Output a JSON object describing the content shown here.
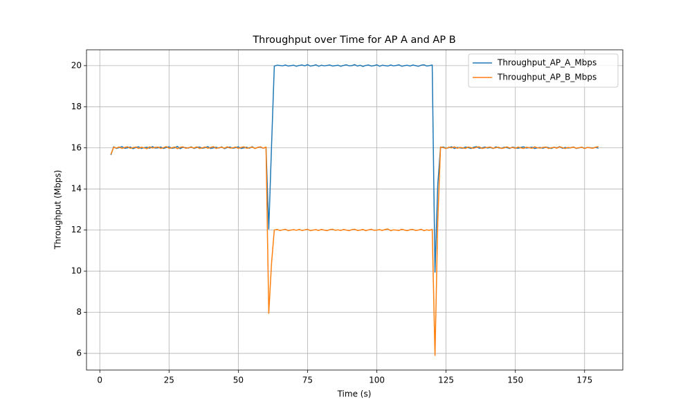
{
  "chart_data": {
    "type": "line",
    "title": "Throughput over Time for AP A and AP B",
    "x_label": "Time (s)",
    "y_label": "Throughput (Mbps)",
    "x": [
      4,
      5,
      6,
      7,
      8,
      9,
      10,
      11,
      12,
      13,
      14,
      15,
      16,
      17,
      18,
      19,
      20,
      21,
      22,
      23,
      24,
      25,
      26,
      27,
      28,
      29,
      30,
      31,
      32,
      33,
      34,
      35,
      36,
      37,
      38,
      39,
      40,
      41,
      42,
      43,
      44,
      45,
      46,
      47,
      48,
      49,
      50,
      51,
      52,
      53,
      54,
      55,
      56,
      57,
      58,
      59,
      60,
      61,
      62,
      63,
      64,
      65,
      66,
      67,
      68,
      69,
      70,
      71,
      72,
      73,
      74,
      75,
      76,
      77,
      78,
      79,
      80,
      81,
      82,
      83,
      84,
      85,
      86,
      87,
      88,
      89,
      90,
      91,
      92,
      93,
      94,
      95,
      96,
      97,
      98,
      99,
      100,
      101,
      102,
      103,
      104,
      105,
      106,
      107,
      108,
      109,
      110,
      111,
      112,
      113,
      114,
      115,
      116,
      117,
      118,
      119,
      120,
      121,
      122,
      123,
      124,
      125,
      126,
      127,
      128,
      129,
      130,
      131,
      132,
      133,
      134,
      135,
      136,
      137,
      138,
      139,
      140,
      141,
      142,
      143,
      144,
      145,
      146,
      147,
      148,
      149,
      150,
      151,
      152,
      153,
      154,
      155,
      156,
      157,
      158,
      159,
      160,
      161,
      162,
      163,
      164,
      165,
      166,
      167,
      168,
      169,
      170,
      171,
      172,
      173,
      174,
      175,
      176,
      177,
      178,
      179,
      180
    ],
    "series": [
      {
        "name": "Throughput_AP_A_Mbps",
        "color": "#1f77b4",
        "values": [
          15.65,
          16.05,
          15.97,
          16.01,
          16.06,
          15.98,
          16.0,
          16.04,
          15.96,
          16.02,
          16.05,
          15.97,
          16.01,
          16.03,
          15.98,
          16.06,
          15.99,
          16.0,
          16.04,
          15.97,
          16.02,
          16.05,
          15.98,
          16.0,
          16.07,
          15.96,
          16.03,
          16.01,
          15.99,
          16.05,
          15.97,
          16.02,
          16.04,
          15.98,
          16.01,
          16.06,
          15.97,
          16.0,
          16.03,
          15.99,
          16.05,
          15.96,
          16.02,
          16.04,
          15.98,
          16.01,
          16.05,
          15.97,
          16.0,
          16.03,
          15.98,
          16.06,
          15.97,
          16.02,
          16.04,
          15.98,
          16.03,
          12.05,
          16.1,
          19.98,
          20.02,
          20.01,
          19.99,
          20.03,
          19.98,
          20.0,
          20.02,
          19.97,
          20.01,
          20.03,
          19.99,
          20.05,
          19.98,
          20.0,
          20.04,
          19.97,
          20.02,
          19.99,
          20.01,
          20.03,
          19.98,
          20.0,
          20.02,
          19.97,
          20.01,
          20.04,
          19.99,
          20.0,
          20.05,
          19.98,
          20.02,
          19.96,
          20.01,
          20.03,
          19.98,
          20.0,
          20.04,
          19.97,
          20.02,
          20.0,
          19.98,
          20.03,
          19.99,
          20.01,
          20.04,
          19.97,
          20.0,
          20.02,
          19.98,
          20.03,
          20.0,
          19.97,
          20.02,
          20.04,
          19.98,
          20.0,
          20.03,
          9.95,
          14.2,
          16.02,
          16.04,
          15.98,
          16.01,
          16.05,
          15.97,
          16.02,
          16.0,
          15.98,
          16.04,
          16.01,
          15.97,
          16.03,
          16.06,
          15.98,
          16.0,
          16.04,
          15.99,
          16.02,
          15.97,
          16.05,
          16.0,
          15.98,
          16.03,
          16.01,
          15.97,
          16.04,
          16.0,
          15.98,
          16.02,
          16.05,
          15.99,
          16.01,
          16.03,
          15.97,
          16.0,
          16.02,
          15.98,
          16.04,
          16.01,
          15.97,
          16.03,
          16.0,
          16.06,
          15.98,
          16.02,
          15.99,
          16.01,
          16.04,
          15.97,
          16.0,
          16.03,
          15.98,
          16.02,
          16.01,
          15.99,
          16.03,
          15.98
        ]
      },
      {
        "name": "Throughput_AP_B_Mbps",
        "color": "#ff7f0e",
        "values": [
          15.68,
          16.03,
          15.99,
          16.04,
          15.97,
          16.02,
          16.05,
          15.98,
          16.01,
          16.04,
          15.97,
          16.03,
          16.0,
          15.96,
          16.05,
          15.99,
          16.02,
          16.04,
          15.97,
          16.01,
          16.06,
          15.98,
          16.0,
          16.04,
          15.96,
          16.02,
          16.05,
          15.98,
          16.01,
          16.03,
          15.99,
          16.05,
          15.97,
          16.0,
          16.04,
          15.98,
          16.02,
          16.06,
          15.97,
          16.01,
          16.03,
          15.98,
          16.05,
          15.99,
          16.0,
          16.04,
          15.97,
          16.02,
          16.05,
          15.98,
          16.01,
          16.04,
          15.97,
          16.02,
          16.05,
          15.98,
          16.04,
          7.95,
          10.4,
          12.0,
          12.03,
          11.98,
          12.01,
          12.04,
          11.97,
          12.0,
          12.02,
          11.99,
          12.03,
          11.98,
          12.01,
          12.04,
          11.97,
          12.0,
          12.02,
          11.98,
          12.03,
          12.0,
          11.97,
          12.02,
          12.04,
          11.99,
          12.01,
          11.98,
          12.03,
          12.0,
          11.97,
          12.02,
          12.04,
          11.98,
          12.0,
          12.03,
          11.97,
          12.01,
          12.04,
          11.99,
          12.0,
          12.02,
          11.98,
          12.03,
          12.05,
          11.97,
          12.01,
          12.0,
          11.98,
          12.04,
          12.0,
          11.97,
          12.02,
          12.03,
          11.98,
          12.0,
          12.04,
          11.97,
          12.01,
          11.99,
          12.03,
          5.9,
          12.4,
          16.04,
          16.01,
          15.97,
          16.03,
          16.0,
          16.05,
          15.98,
          16.02,
          16.0,
          15.97,
          16.04,
          16.01,
          15.98,
          16.03,
          16.05,
          15.97,
          16.0,
          16.02,
          16.04,
          15.98,
          16.01,
          16.03,
          15.97,
          16.0,
          16.05,
          15.99,
          16.02,
          15.98,
          16.04,
          16.0,
          15.97,
          16.03,
          16.01,
          15.98,
          16.05,
          16.0,
          15.99,
          16.02,
          16.04,
          15.97,
          16.0,
          16.03,
          15.98,
          16.05,
          16.01,
          15.97,
          16.02,
          16.0,
          16.04,
          15.98,
          16.01,
          16.03,
          15.97,
          16.02,
          16.0,
          15.98,
          16.03,
          16.07
        ]
      }
    ],
    "xlim": [
      -4.8,
      188.8
    ],
    "ylim": [
      5.19,
      20.77
    ],
    "xticks": [
      0,
      25,
      50,
      75,
      100,
      125,
      150,
      175
    ],
    "yticks": [
      6,
      8,
      10,
      12,
      14,
      16,
      18,
      20
    ],
    "grid": true,
    "legend": "upper right"
  }
}
